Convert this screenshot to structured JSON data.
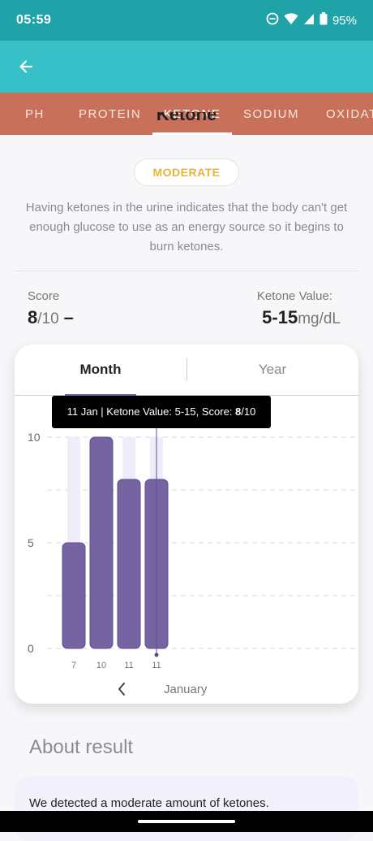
{
  "status_bar": {
    "time": "05:59",
    "battery": "95%"
  },
  "tabs": [
    {
      "label": "PH",
      "active": false
    },
    {
      "label": "PROTEIN",
      "active": false
    },
    {
      "label": "KETONE",
      "active": true
    },
    {
      "label": "SODIUM",
      "active": false
    },
    {
      "label": "OXIDAT",
      "active": false
    }
  ],
  "header": {
    "title_partial": "Ketone"
  },
  "badge": {
    "label": "MODERATE",
    "color": "#e8b53a"
  },
  "description": "Having ketones in the urine indicates that the body can't get enough glucose to use as an energy source so it begins to burn ketones.",
  "score": {
    "label": "Score",
    "value": "8",
    "max": "/10",
    "trend": "–"
  },
  "ketone_value": {
    "label": "Ketone Value:",
    "value": "5-15",
    "unit": "mg/dL"
  },
  "segments": {
    "month": "Month",
    "year": "Year"
  },
  "tooltip": {
    "prefix": "11 Jan | Ketone Value: 5-15, Score: ",
    "score": "8",
    "suffix": "/10"
  },
  "chart_data": {
    "type": "bar",
    "categories": [
      "7",
      "10",
      "11",
      "11"
    ],
    "values": [
      5,
      10,
      8,
      8
    ],
    "y_ticks": [
      "0",
      "5",
      "10"
    ],
    "ylim": [
      0,
      10
    ],
    "grid": true,
    "bar_color": "#7564a1",
    "bg_bar_color": "#efedf9",
    "selected_index": 3
  },
  "month_nav": {
    "label": "January"
  },
  "about": {
    "title": "About result",
    "text": "We detected a moderate amount of ketones."
  },
  "colors": {
    "status_bar": "#1fa3a8",
    "app_bar": "#37c0c8",
    "tab_bar": "#c9705a",
    "accent": "#7a67a8"
  }
}
